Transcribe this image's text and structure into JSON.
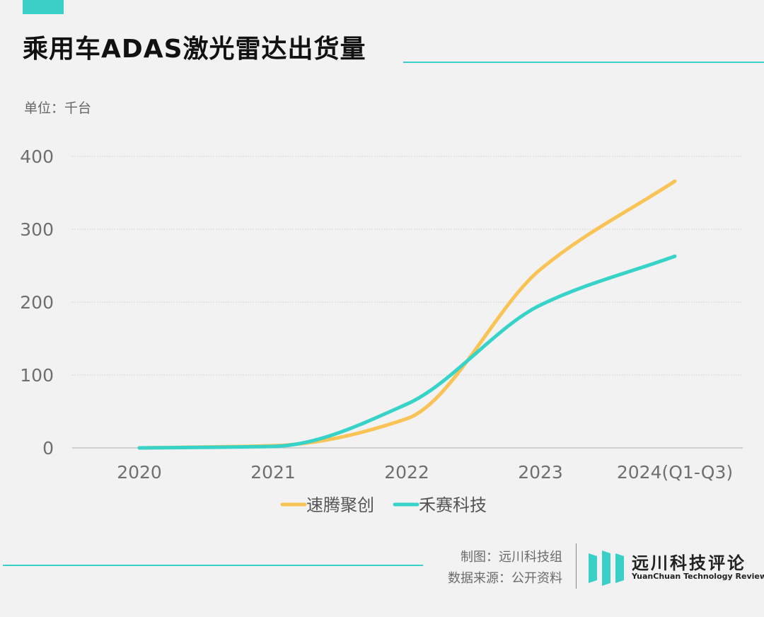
{
  "title": "乘用车ADAS激光雷达出货量",
  "unit_label": "单位：千台",
  "credits": {
    "made_by": "制图：远川科技组",
    "source": "数据来源：公开资料"
  },
  "brand": {
    "name_cn": "远川科技评论",
    "name_en": "YuanChuan Technology Review"
  },
  "colors": {
    "accent": "#3ad0c8",
    "series_1": "#f9c356",
    "series_2": "#37d3c8",
    "background": "#f2f2f2"
  },
  "chart_data": {
    "type": "line",
    "categories": [
      "2020",
      "2021",
      "2022",
      "2023",
      "2024(Q1-Q3)"
    ],
    "series": [
      {
        "name": "速腾聚创",
        "values": [
          0,
          3,
          40,
          245,
          366
        ]
      },
      {
        "name": "禾赛科技",
        "values": [
          0,
          2,
          60,
          196,
          263
        ]
      }
    ],
    "ylim": [
      0,
      400
    ],
    "yticks": [
      0,
      100,
      200,
      300,
      400
    ],
    "grid": true,
    "smooth": true,
    "legend": "bottom-center"
  }
}
